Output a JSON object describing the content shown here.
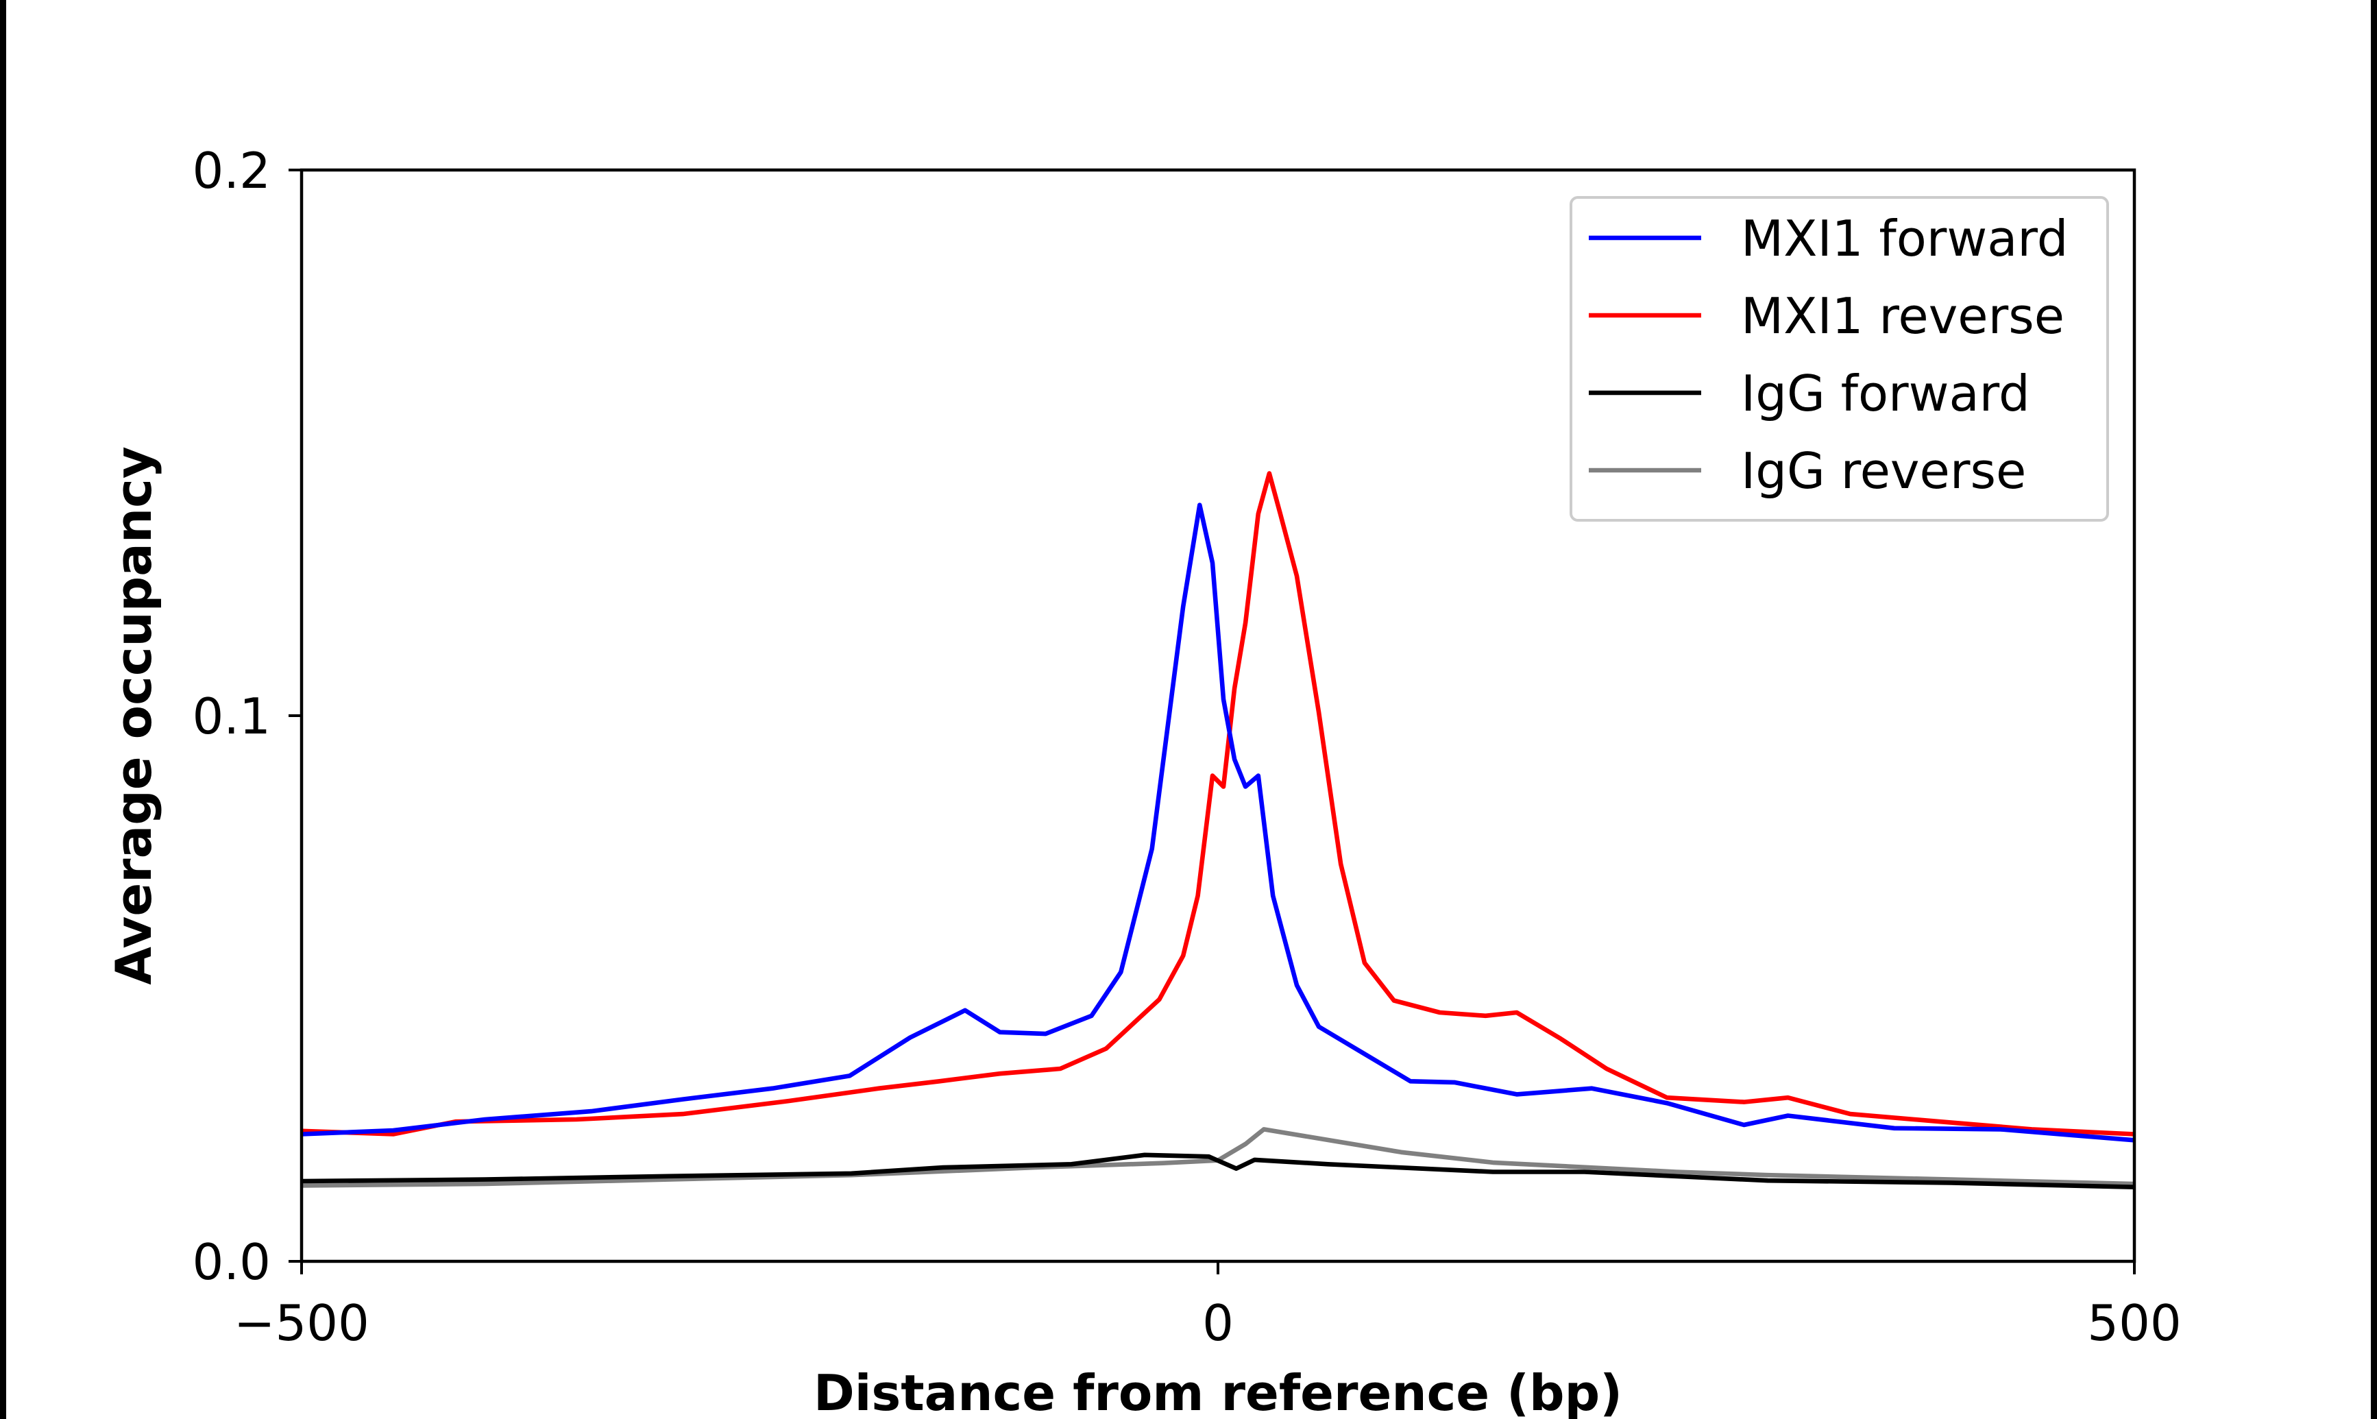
{
  "chart_data": {
    "type": "line",
    "xlabel": "Distance from reference (bp)",
    "ylabel": "Average occupancy",
    "xlim": [
      -500,
      500
    ],
    "ylim": [
      0,
      0.2
    ],
    "xticks": [
      -500,
      0,
      500
    ],
    "xtick_labels": [
      "−500",
      "0",
      "500"
    ],
    "yticks": [
      0,
      0.1,
      0.2
    ],
    "ytick_labels": [
      "0.0",
      "0.1",
      "0.2"
    ],
    "grid": false,
    "legend_position": "top-right",
    "series": [
      {
        "name": "MXI1 forward",
        "color": "#0000ff",
        "x": [
          -500,
          -450,
          -400,
          -342,
          -292,
          -243,
          -201,
          -168,
          -138,
          -119,
          -94,
          -69,
          -53,
          -36,
          -19,
          -10,
          -3,
          3,
          9,
          15,
          22,
          30,
          43,
          55,
          80,
          105,
          129,
          163,
          204,
          245,
          287,
          311,
          369,
          427,
          500
        ],
        "y": [
          0.0233,
          0.024,
          0.026,
          0.0275,
          0.0297,
          0.0317,
          0.034,
          0.041,
          0.046,
          0.042,
          0.0417,
          0.045,
          0.053,
          0.0756,
          0.12,
          0.1386,
          0.128,
          0.103,
          0.092,
          0.087,
          0.089,
          0.067,
          0.0506,
          0.043,
          0.038,
          0.033,
          0.0328,
          0.0306,
          0.0317,
          0.029,
          0.025,
          0.0267,
          0.0244,
          0.0242,
          0.0222
        ]
      },
      {
        "name": "MXI1 reverse",
        "color": "#ff0000",
        "x": [
          -500,
          -450,
          -416,
          -350,
          -292,
          -234,
          -185,
          -152,
          -119,
          -86,
          -61,
          -32,
          -19,
          -11,
          -3,
          3,
          9,
          15,
          22,
          28,
          34,
          43,
          55,
          67,
          80,
          96,
          121,
          146,
          163,
          187,
          212,
          245,
          287,
          311,
          345,
          394,
          444,
          500
        ],
        "y": [
          0.0239,
          0.0233,
          0.0256,
          0.026,
          0.027,
          0.0294,
          0.0317,
          0.033,
          0.0344,
          0.0353,
          0.039,
          0.048,
          0.056,
          0.067,
          0.089,
          0.087,
          0.105,
          0.117,
          0.137,
          0.1444,
          0.137,
          0.1256,
          0.1006,
          0.0728,
          0.0547,
          0.0478,
          0.0456,
          0.045,
          0.0456,
          0.0408,
          0.0353,
          0.03,
          0.0292,
          0.03,
          0.027,
          0.0256,
          0.0242,
          0.0233
        ]
      },
      {
        "name": "IgG forward",
        "color": "#000000",
        "x": [
          -500,
          -400,
          -300,
          -200,
          -150,
          -80,
          -40,
          -5,
          10,
          20,
          60,
          150,
          200,
          300,
          400,
          500
        ],
        "y": [
          0.0147,
          0.015,
          0.0156,
          0.0161,
          0.0172,
          0.0178,
          0.0195,
          0.0192,
          0.017,
          0.0186,
          0.0178,
          0.0164,
          0.0164,
          0.0148,
          0.0144,
          0.0136
        ]
      },
      {
        "name": "IgG reverse",
        "color": "#808080",
        "x": [
          -500,
          -400,
          -300,
          -200,
          -100,
          -30,
          0,
          15,
          25,
          50,
          100,
          150,
          250,
          300,
          400,
          500
        ],
        "y": [
          0.0139,
          0.0142,
          0.015,
          0.0158,
          0.0172,
          0.018,
          0.0185,
          0.0215,
          0.0242,
          0.0228,
          0.02,
          0.0181,
          0.0164,
          0.0158,
          0.015,
          0.0142
        ]
      }
    ]
  }
}
